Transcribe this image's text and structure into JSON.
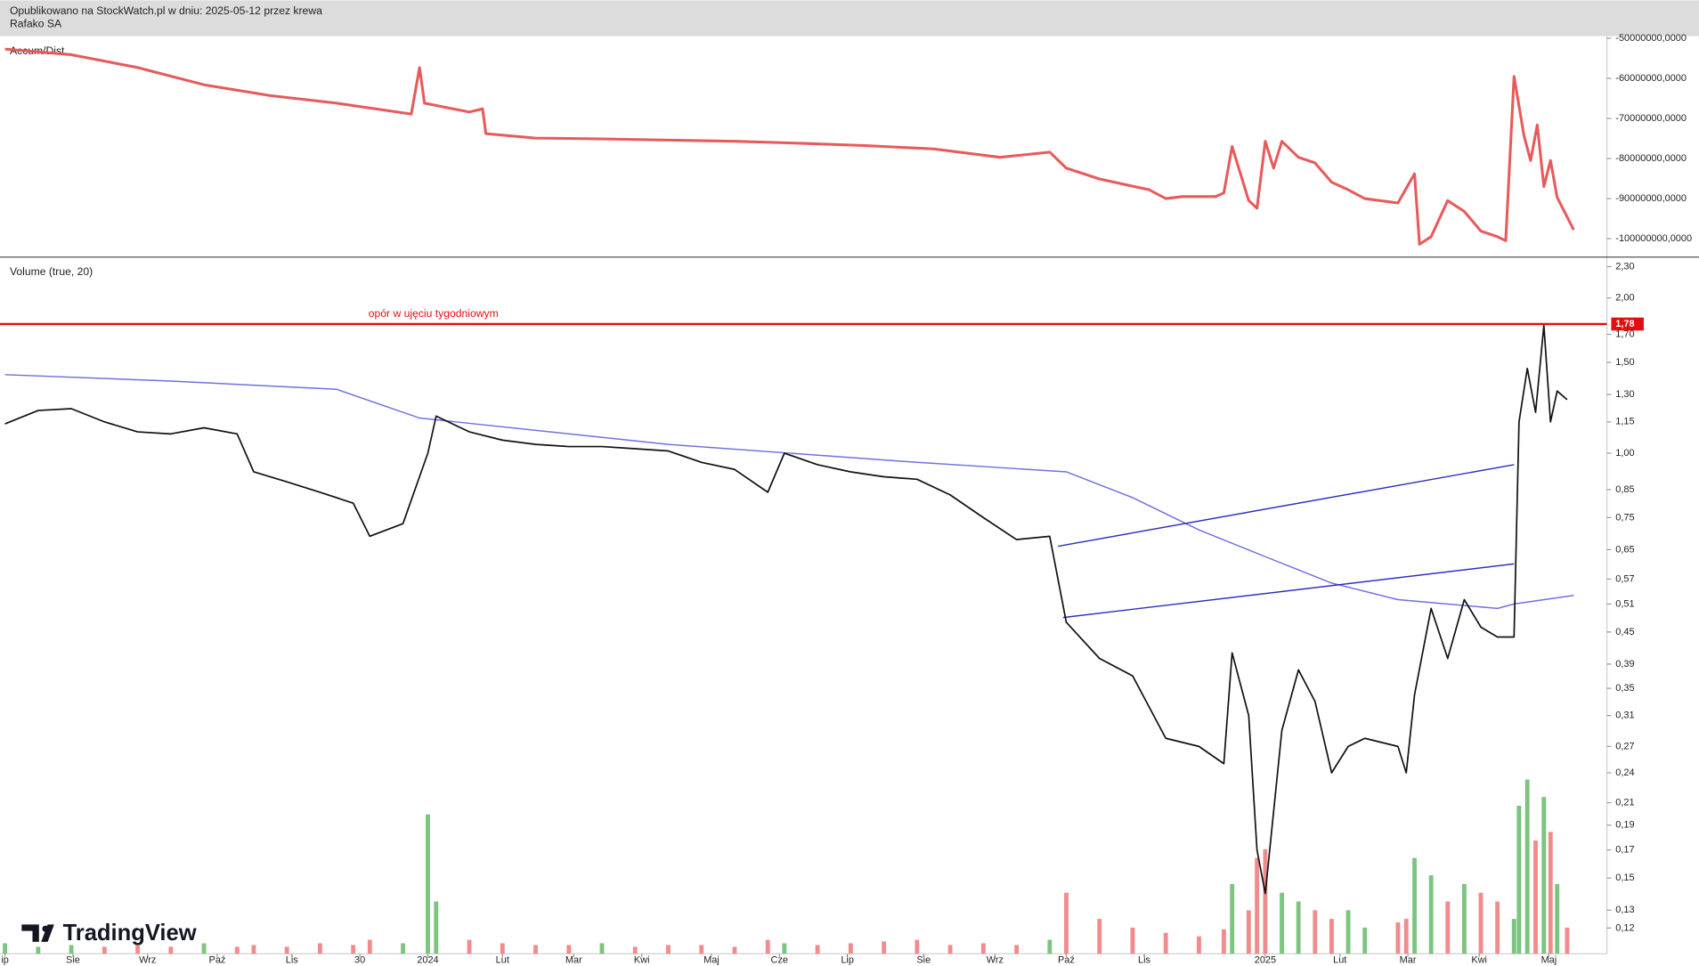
{
  "header": {
    "title": "Opublikowano na StockWatch.pl w dniu: 2025-05-12 przez krewa",
    "symbol": "Rafako SA"
  },
  "branding": "TradingView",
  "chart_data": [
    {
      "type": "line",
      "title": "Accum/Dist",
      "color": "#e85a5a",
      "x": [
        0,
        4,
        8,
        12,
        16,
        20,
        24.5,
        25,
        25.3,
        28,
        28.8,
        29,
        32,
        36,
        40,
        44,
        48,
        52,
        56,
        60,
        63,
        64,
        66,
        69,
        70,
        71,
        73,
        73.5,
        74,
        75,
        75.5,
        76,
        76.5,
        77,
        78,
        79,
        80,
        81,
        82,
        84,
        85,
        85.3,
        86,
        87,
        88,
        89,
        90,
        90.5,
        91,
        91.6,
        92,
        92.4,
        92.8,
        93.2,
        93.6,
        94.6
      ],
      "values": [
        -52700000,
        -54100000,
        -57300000,
        -61600000,
        -64300000,
        -66200000,
        -68900000,
        -57300000,
        -66200000,
        -68400000,
        -67600000,
        -73800000,
        -74900000,
        -75100000,
        -75400000,
        -75700000,
        -76200000,
        -76800000,
        -77600000,
        -79700000,
        -78400000,
        -82400000,
        -85100000,
        -87800000,
        -90000000,
        -89500000,
        -89500000,
        -88600000,
        -77000000,
        -90500000,
        -92400000,
        -75700000,
        -82400000,
        -75700000,
        -79700000,
        -81100000,
        -85900000,
        -87800000,
        -90000000,
        -91100000,
        -83800000,
        -101400000,
        -99500000,
        -90500000,
        -93200000,
        -98100000,
        -99500000,
        -100500000,
        -59500000,
        -74300000,
        -80500000,
        -71600000,
        -87000000,
        -80500000,
        -89700000,
        -97800000
      ],
      "xlim": [
        -0.3,
        96.6
      ],
      "ylim": [
        -104600000,
        -49460000
      ],
      "yticks": [
        {
          "value": -50000000,
          "label": "-50000000,0000"
        },
        {
          "value": -60000000,
          "label": "-60000000,0000"
        },
        {
          "value": -70000000,
          "label": "-70000000,0000"
        },
        {
          "value": -80000000,
          "label": "-80000000,0000"
        },
        {
          "value": -90000000,
          "label": "-90000000,0000"
        },
        {
          "value": -100000000,
          "label": "-100000000,0000"
        }
      ]
    },
    {
      "type": "line",
      "title": "Volume (true, 20)",
      "color": "#111111",
      "log_scale": true,
      "x": [
        0,
        2,
        4,
        6,
        8,
        10,
        12,
        14,
        15,
        17,
        19,
        21,
        22,
        24,
        25.5,
        26,
        28,
        30,
        32,
        34,
        36,
        38,
        40,
        42,
        44,
        46,
        47,
        49,
        51,
        53,
        55,
        57,
        59,
        61,
        63,
        64,
        66,
        68,
        70,
        72,
        73.5,
        74,
        75,
        75.5,
        76,
        77,
        78,
        79,
        80,
        81,
        82,
        84,
        84.5,
        85,
        86,
        87,
        88,
        89,
        90,
        91,
        91.3,
        91.8,
        92.3,
        92.8,
        93.2,
        93.6,
        94.2
      ],
      "values": [
        1.14,
        1.21,
        1.22,
        1.15,
        1.1,
        1.09,
        1.12,
        1.09,
        0.92,
        0.88,
        0.84,
        0.8,
        0.69,
        0.73,
        1.0,
        1.18,
        1.1,
        1.06,
        1.04,
        1.03,
        1.03,
        1.02,
        1.01,
        0.96,
        0.93,
        0.84,
        1.0,
        0.95,
        0.92,
        0.9,
        0.89,
        0.83,
        0.75,
        0.68,
        0.69,
        0.47,
        0.4,
        0.37,
        0.28,
        0.27,
        0.25,
        0.41,
        0.31,
        0.17,
        0.14,
        0.29,
        0.38,
        0.33,
        0.24,
        0.27,
        0.28,
        0.27,
        0.24,
        0.34,
        0.5,
        0.4,
        0.52,
        0.46,
        0.44,
        0.44,
        1.15,
        1.46,
        1.2,
        1.77,
        1.15,
        1.32,
        1.27
      ],
      "volume": {
        "up_color": "#7cc47f",
        "down_color": "#f28b8b",
        "values": [
          6,
          4,
          5,
          4,
          5,
          4,
          6,
          4,
          5,
          4,
          6,
          5,
          8,
          6,
          80,
          30,
          8,
          6,
          5,
          5,
          6,
          4,
          5,
          5,
          4,
          8,
          6,
          5,
          6,
          7,
          8,
          5,
          6,
          5,
          8,
          35,
          20,
          15,
          12,
          10,
          14,
          40,
          25,
          55,
          60,
          35,
          30,
          25,
          20,
          25,
          15,
          18,
          20,
          55,
          45,
          30,
          40,
          35,
          30,
          20,
          85,
          100,
          65,
          90,
          70,
          40,
          15
        ]
      },
      "y2lim": [
        0,
        400
      ],
      "overlays": [
        {
          "color": "#7070e0",
          "x": [
            0,
            10,
            20,
            25,
            40,
            55,
            64,
            68,
            72,
            76,
            80,
            84,
            90,
            91,
            94.6
          ],
          "values": [
            1.42,
            1.38,
            1.33,
            1.17,
            1.04,
            0.96,
            0.92,
            0.82,
            0.71,
            0.63,
            0.56,
            0.52,
            0.5,
            0.51,
            0.53
          ]
        },
        {
          "color": "#3030c0",
          "x": [
            63.5,
            91
          ],
          "values": [
            0.66,
            0.95
          ]
        },
        {
          "color": "#3030c0",
          "x": [
            63.8,
            91
          ],
          "values": [
            0.48,
            0.61
          ]
        }
      ],
      "hline": {
        "value": 1.78,
        "label": "1,78",
        "color": "#e01010"
      },
      "annotation": "opór w ujęciu tygodniowym",
      "xlim": [
        -0.3,
        96.6
      ],
      "ylim": [
        0.107,
        2.4
      ],
      "yticks": [
        {
          "value": 2.3,
          "label": "2,30"
        },
        {
          "value": 2.0,
          "label": "2,00"
        },
        {
          "value": 1.7,
          "label": "1,70"
        },
        {
          "value": 1.5,
          "label": "1,50"
        },
        {
          "value": 1.3,
          "label": "1,30"
        },
        {
          "value": 1.15,
          "label": "1,15"
        },
        {
          "value": 1.0,
          "label": "1,00"
        },
        {
          "value": 0.85,
          "label": "0,85"
        },
        {
          "value": 0.75,
          "label": "0,75"
        },
        {
          "value": 0.65,
          "label": "0,65"
        },
        {
          "value": 0.57,
          "label": "0,57"
        },
        {
          "value": 0.51,
          "label": "0,51"
        },
        {
          "value": 0.45,
          "label": "0,45"
        },
        {
          "value": 0.39,
          "label": "0,39"
        },
        {
          "value": 0.35,
          "label": "0,35"
        },
        {
          "value": 0.31,
          "label": "0,31"
        },
        {
          "value": 0.27,
          "label": "0,27"
        },
        {
          "value": 0.24,
          "label": "0,24"
        },
        {
          "value": 0.21,
          "label": "0,21"
        },
        {
          "value": 0.19,
          "label": "0,19"
        },
        {
          "value": 0.17,
          "label": "0,17"
        },
        {
          "value": 0.15,
          "label": "0,15"
        },
        {
          "value": 0.13,
          "label": "0,13"
        },
        {
          "value": 0.12,
          "label": "0,12"
        }
      ],
      "xticks": [
        {
          "value": 0,
          "label": "ip"
        },
        {
          "value": 4.1,
          "label": "Sie"
        },
        {
          "value": 8.6,
          "label": "Wrz"
        },
        {
          "value": 12.8,
          "label": "Paź"
        },
        {
          "value": 17.3,
          "label": "Lis"
        },
        {
          "value": 21.4,
          "label": "30"
        },
        {
          "value": 25.5,
          "label": "2024"
        },
        {
          "value": 30,
          "label": "Lut"
        },
        {
          "value": 34.3,
          "label": "Mar"
        },
        {
          "value": 38.4,
          "label": "Kwi"
        },
        {
          "value": 42.6,
          "label": "Maj"
        },
        {
          "value": 46.7,
          "label": "Cze"
        },
        {
          "value": 50.8,
          "label": "Lip"
        },
        {
          "value": 55.4,
          "label": "Sie"
        },
        {
          "value": 59.7,
          "label": "Wrz"
        },
        {
          "value": 64,
          "label": "Paź"
        },
        {
          "value": 68.7,
          "label": "Lis"
        },
        {
          "value": 76,
          "label": "2025"
        },
        {
          "value": 80.5,
          "label": "Lut"
        },
        {
          "value": 84.6,
          "label": "Mar"
        },
        {
          "value": 88.9,
          "label": "Kwi"
        },
        {
          "value": 93.1,
          "label": "Maj"
        }
      ]
    }
  ]
}
